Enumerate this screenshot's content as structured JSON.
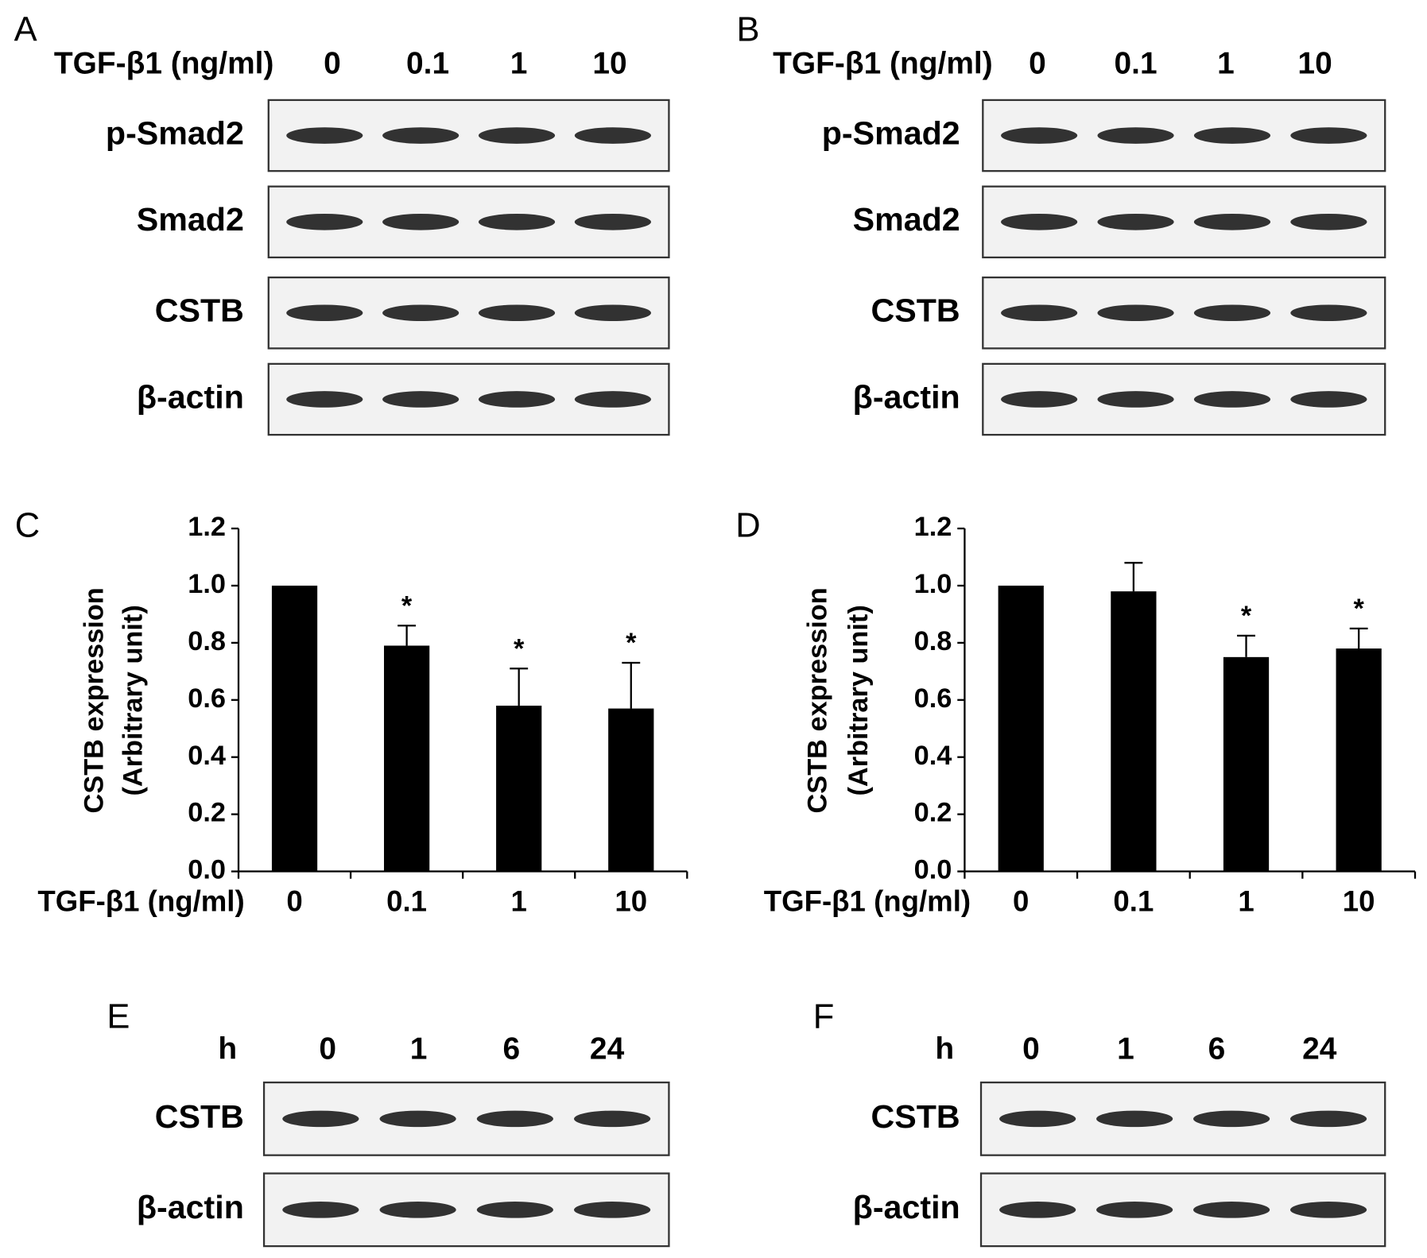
{
  "blots": [
    {
      "letter": "A",
      "treatment_label": "TGF-β1 (ng/ml)",
      "lanes": [
        "0",
        "0.1",
        "1",
        "10"
      ],
      "rows": [
        "p-Smad2",
        "Smad2",
        "CSTB",
        "β-actin"
      ]
    },
    {
      "letter": "B",
      "treatment_label": "TGF-β1 (ng/ml)",
      "lanes": [
        "0",
        "0.1",
        "1",
        "10"
      ],
      "rows": [
        "p-Smad2",
        "Smad2",
        "CSTB",
        "β-actin"
      ]
    },
    {
      "letter": "E",
      "treatment_label": "h",
      "lanes": [
        "0",
        "1",
        "6",
        "24"
      ],
      "rows": [
        "CSTB",
        "β-actin"
      ]
    },
    {
      "letter": "F",
      "treatment_label": "h",
      "lanes": [
        "0",
        "1",
        "6",
        "24"
      ],
      "rows": [
        "CSTB",
        "β-actin"
      ]
    }
  ],
  "chart_data": [
    {
      "type": "bar",
      "panel_label": "C",
      "ylabel": [
        "CSTB expression",
        "(Arbitrary unit)"
      ],
      "xlabel": "TGF-β1 (ng/ml)",
      "categories": [
        "0",
        "0.1",
        "1",
        "10"
      ],
      "values": [
        1.0,
        0.79,
        0.58,
        0.57
      ],
      "errors": [
        null,
        0.07,
        0.13,
        0.16
      ],
      "significance": [
        null,
        "*",
        "*",
        "*"
      ],
      "color": "#000000",
      "ylim": [
        0,
        1.2
      ],
      "yticks": [
        {
          "value": 0,
          "label": "0.0"
        },
        {
          "value": 0.2,
          "label": "0.2"
        },
        {
          "value": 0.4,
          "label": "0.4"
        },
        {
          "value": 0.6,
          "label": "0.6"
        },
        {
          "value": 0.8,
          "label": "0.8"
        },
        {
          "value": 1.0,
          "label": "1.0"
        },
        {
          "value": 1.2,
          "label": "1.2"
        }
      ]
    },
    {
      "type": "bar",
      "panel_label": "D",
      "ylabel": [
        "CSTB expression",
        "(Arbitrary unit)"
      ],
      "xlabel": "TGF-β1 (ng/ml)",
      "categories": [
        "0",
        "0.1",
        "1",
        "10"
      ],
      "values": [
        1.0,
        0.98,
        0.75,
        0.78
      ],
      "errors": [
        null,
        0.1,
        0.075,
        0.07
      ],
      "significance": [
        null,
        null,
        "*",
        "*"
      ],
      "color": "#000000",
      "ylim": [
        0,
        1.2
      ],
      "yticks": [
        {
          "value": 0,
          "label": "0.0"
        },
        {
          "value": 0.2,
          "label": "0.2"
        },
        {
          "value": 0.4,
          "label": "0.4"
        },
        {
          "value": 0.6,
          "label": "0.6"
        },
        {
          "value": 0.8,
          "label": "0.8"
        },
        {
          "value": 1.0,
          "label": "1.0"
        },
        {
          "value": 1.2,
          "label": "1.2"
        }
      ]
    }
  ]
}
